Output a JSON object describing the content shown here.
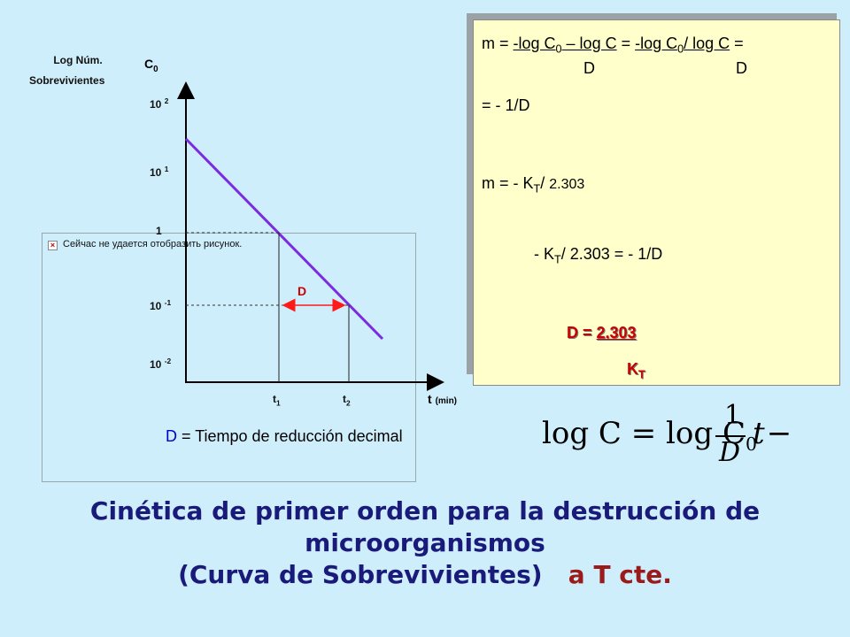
{
  "axis": {
    "ylabel_line1": "Log Núm.",
    "ylabel_line2": "Sobrevivientes",
    "c0_label": "C",
    "c0_sub": "0",
    "xlabel": "t",
    "xlabel_unit": "(min)",
    "y_ticks": [
      {
        "base": "10",
        "exp": "2"
      },
      {
        "base": "10",
        "exp": "1"
      },
      {
        "base": "1",
        "exp": ""
      },
      {
        "base": "10",
        "exp": "-1"
      },
      {
        "base": "10",
        "exp": "-2"
      }
    ],
    "t1": {
      "base": "t",
      "sub": "1"
    },
    "t2": {
      "base": "t",
      "sub": "2"
    },
    "d_marker": "D"
  },
  "colors": {
    "line": "#7b2be0",
    "arrow": "#ff1a1a",
    "d_marker": "#cc0000",
    "d_definition": "#0000cc",
    "title": "#1a1a7a",
    "title_accent": "#9b1b1b"
  },
  "broken_image": {
    "text": "Сейчас не удается отобразить рисунок."
  },
  "formulas": {
    "m_prefix": "m = ",
    "num1_a": "-log C",
    "num1_sub": "0",
    "num1_b": " – log C",
    "eq": " = ",
    "num2_a": "-log C",
    "num2_sub": "0",
    "num2_b": "/ log C",
    "eq_end": " =",
    "den1": "D",
    "den2": "D",
    "line2": "= - 1/D",
    "line3_a": "m = - K",
    "line3_sub": "T",
    "line3_b": "/ ",
    "line3_c": "2.303",
    "line4_a": "- K",
    "line4_sub": "T",
    "line4_b": "/ 2.303 = - 1/D",
    "d_result_a": "D = ",
    "d_result_b": "2.303",
    "kt_a": "K",
    "kt_sub": "T"
  },
  "d_definition": {
    "symbol": "D",
    "text": " = Tiempo de reducción decimal"
  },
  "log_formula": {
    "lhs": "log C = log C",
    "sub": "0",
    "minus": " − ",
    "num": "1",
    "den": "D",
    "t": "t"
  },
  "title": {
    "line1": "Cinética de primer orden para la destrucción de",
    "line2": "microorganismos",
    "line3_a": "(Curva de Sobrevivientes)",
    "line3_b": "a T cte."
  }
}
